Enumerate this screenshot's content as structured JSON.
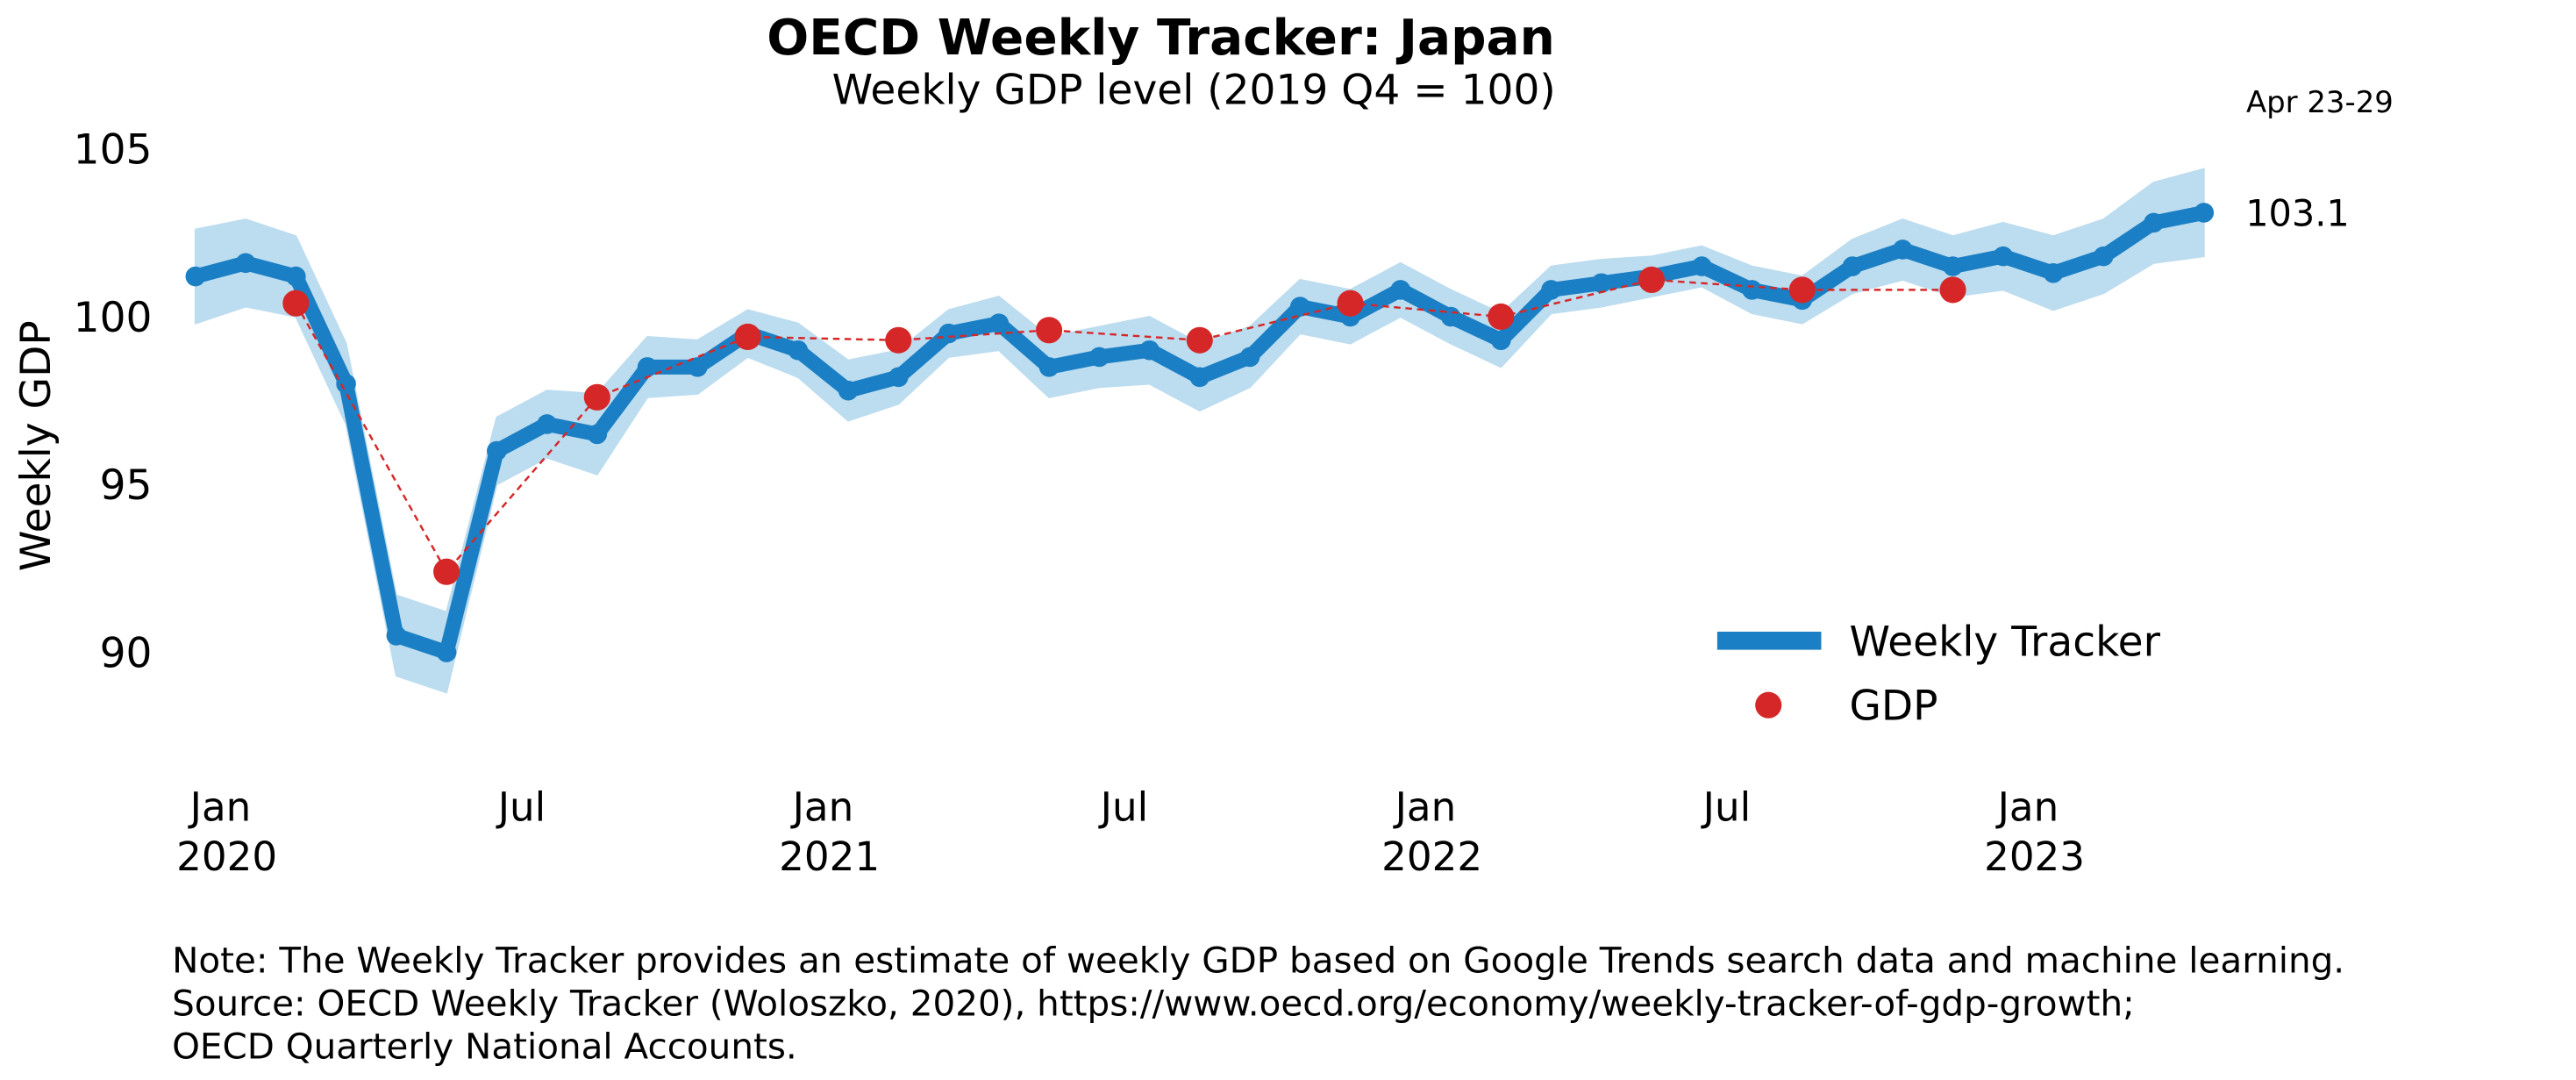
{
  "chart_data": {
    "type": "line",
    "title": "OECD Weekly Tracker: Japan",
    "subtitle": "Weekly GDP level (2019 Q4 = 100)",
    "ylabel": "Weekly GDP",
    "annotation": "Apr 23-29",
    "xlim": [
      "2019-12",
      "2023-05"
    ],
    "xticks": [
      {
        "value": "2020-01",
        "label": "Jan 2020"
      },
      {
        "value": "2020-07",
        "label": "Jul"
      },
      {
        "value": "2021-01",
        "label": "Jan 2021"
      },
      {
        "value": "2021-07",
        "label": "Jul"
      },
      {
        "value": "2022-01",
        "label": "Jan 2022"
      },
      {
        "value": "2022-07",
        "label": "Jul"
      },
      {
        "value": "2023-01",
        "label": "Jan 2023"
      }
    ],
    "ylim": [
      87,
      105.5
    ],
    "yticks": [
      90,
      95,
      100,
      105
    ],
    "grid": false,
    "legend": "lower right",
    "series": [
      {
        "name": "Weekly Tracker",
        "color": "#1a7fc4",
        "band_color": "#bcdcef",
        "x": [
          "2019-12",
          "2020-01",
          "2020-02",
          "2020-03",
          "2020-04",
          "2020-05",
          "2020-06",
          "2020-07",
          "2020-08",
          "2020-09",
          "2020-10",
          "2020-11",
          "2020-12",
          "2021-01",
          "2021-02",
          "2021-03",
          "2021-04",
          "2021-05",
          "2021-06",
          "2021-07",
          "2021-08",
          "2021-09",
          "2021-10",
          "2021-11",
          "2021-12",
          "2022-01",
          "2022-02",
          "2022-03",
          "2022-04",
          "2022-05",
          "2022-06",
          "2022-07",
          "2022-08",
          "2022-09",
          "2022-10",
          "2022-11",
          "2022-12",
          "2023-01",
          "2023-02",
          "2023-03",
          "2023-04"
        ],
        "values": [
          101.2,
          101.6,
          101.2,
          98.0,
          90.5,
          90.0,
          96.0,
          96.8,
          96.5,
          98.5,
          98.5,
          99.5,
          99.0,
          97.8,
          98.2,
          99.5,
          99.8,
          98.5,
          98.8,
          99.0,
          98.2,
          98.8,
          100.3,
          100.0,
          100.8,
          100.0,
          99.3,
          100.8,
          101.0,
          101.2,
          101.5,
          100.8,
          100.5,
          101.5,
          102.0,
          101.5,
          101.8,
          101.3,
          101.8,
          102.8,
          103.1
        ],
        "lower": [
          99.8,
          100.3,
          100.0,
          96.8,
          89.3,
          88.8,
          95.0,
          95.8,
          95.3,
          97.6,
          97.7,
          98.8,
          98.2,
          96.9,
          97.4,
          98.8,
          99.0,
          97.6,
          97.9,
          98.0,
          97.2,
          97.9,
          99.5,
          99.2,
          100.0,
          99.2,
          98.5,
          100.1,
          100.3,
          100.6,
          100.9,
          100.1,
          99.8,
          100.7,
          101.1,
          100.6,
          100.8,
          100.2,
          100.7,
          101.6,
          101.8
        ],
        "upper": [
          102.6,
          102.9,
          102.4,
          99.2,
          91.7,
          91.2,
          97.0,
          97.8,
          97.7,
          99.4,
          99.3,
          100.2,
          99.8,
          98.7,
          99.0,
          100.2,
          100.6,
          99.4,
          99.7,
          100.0,
          99.2,
          99.7,
          101.1,
          100.8,
          101.6,
          100.8,
          100.1,
          101.5,
          101.7,
          101.8,
          102.1,
          101.5,
          101.2,
          102.3,
          102.9,
          102.4,
          102.8,
          102.4,
          102.9,
          104.0,
          104.4
        ]
      },
      {
        "name": "GDP",
        "color": "#d62728",
        "x": [
          "2020-02",
          "2020-05",
          "2020-08",
          "2020-11",
          "2021-02",
          "2021-05",
          "2021-08",
          "2021-11",
          "2022-02",
          "2022-05",
          "2022-08",
          "2022-11"
        ],
        "values": [
          100.4,
          92.4,
          97.6,
          99.4,
          99.3,
          99.6,
          99.3,
          100.4,
          100.0,
          101.1,
          100.8,
          100.8
        ]
      }
    ],
    "notes": [
      "Note: The Weekly Tracker provides an estimate of weekly GDP based on Google Trends search data and machine learning.",
      "Source: OECD Weekly Tracker (Woloszko, 2020), https://www.oecd.org/economy/weekly-tracker-of-gdp-growth;",
      "OECD Quarterly National Accounts."
    ]
  }
}
